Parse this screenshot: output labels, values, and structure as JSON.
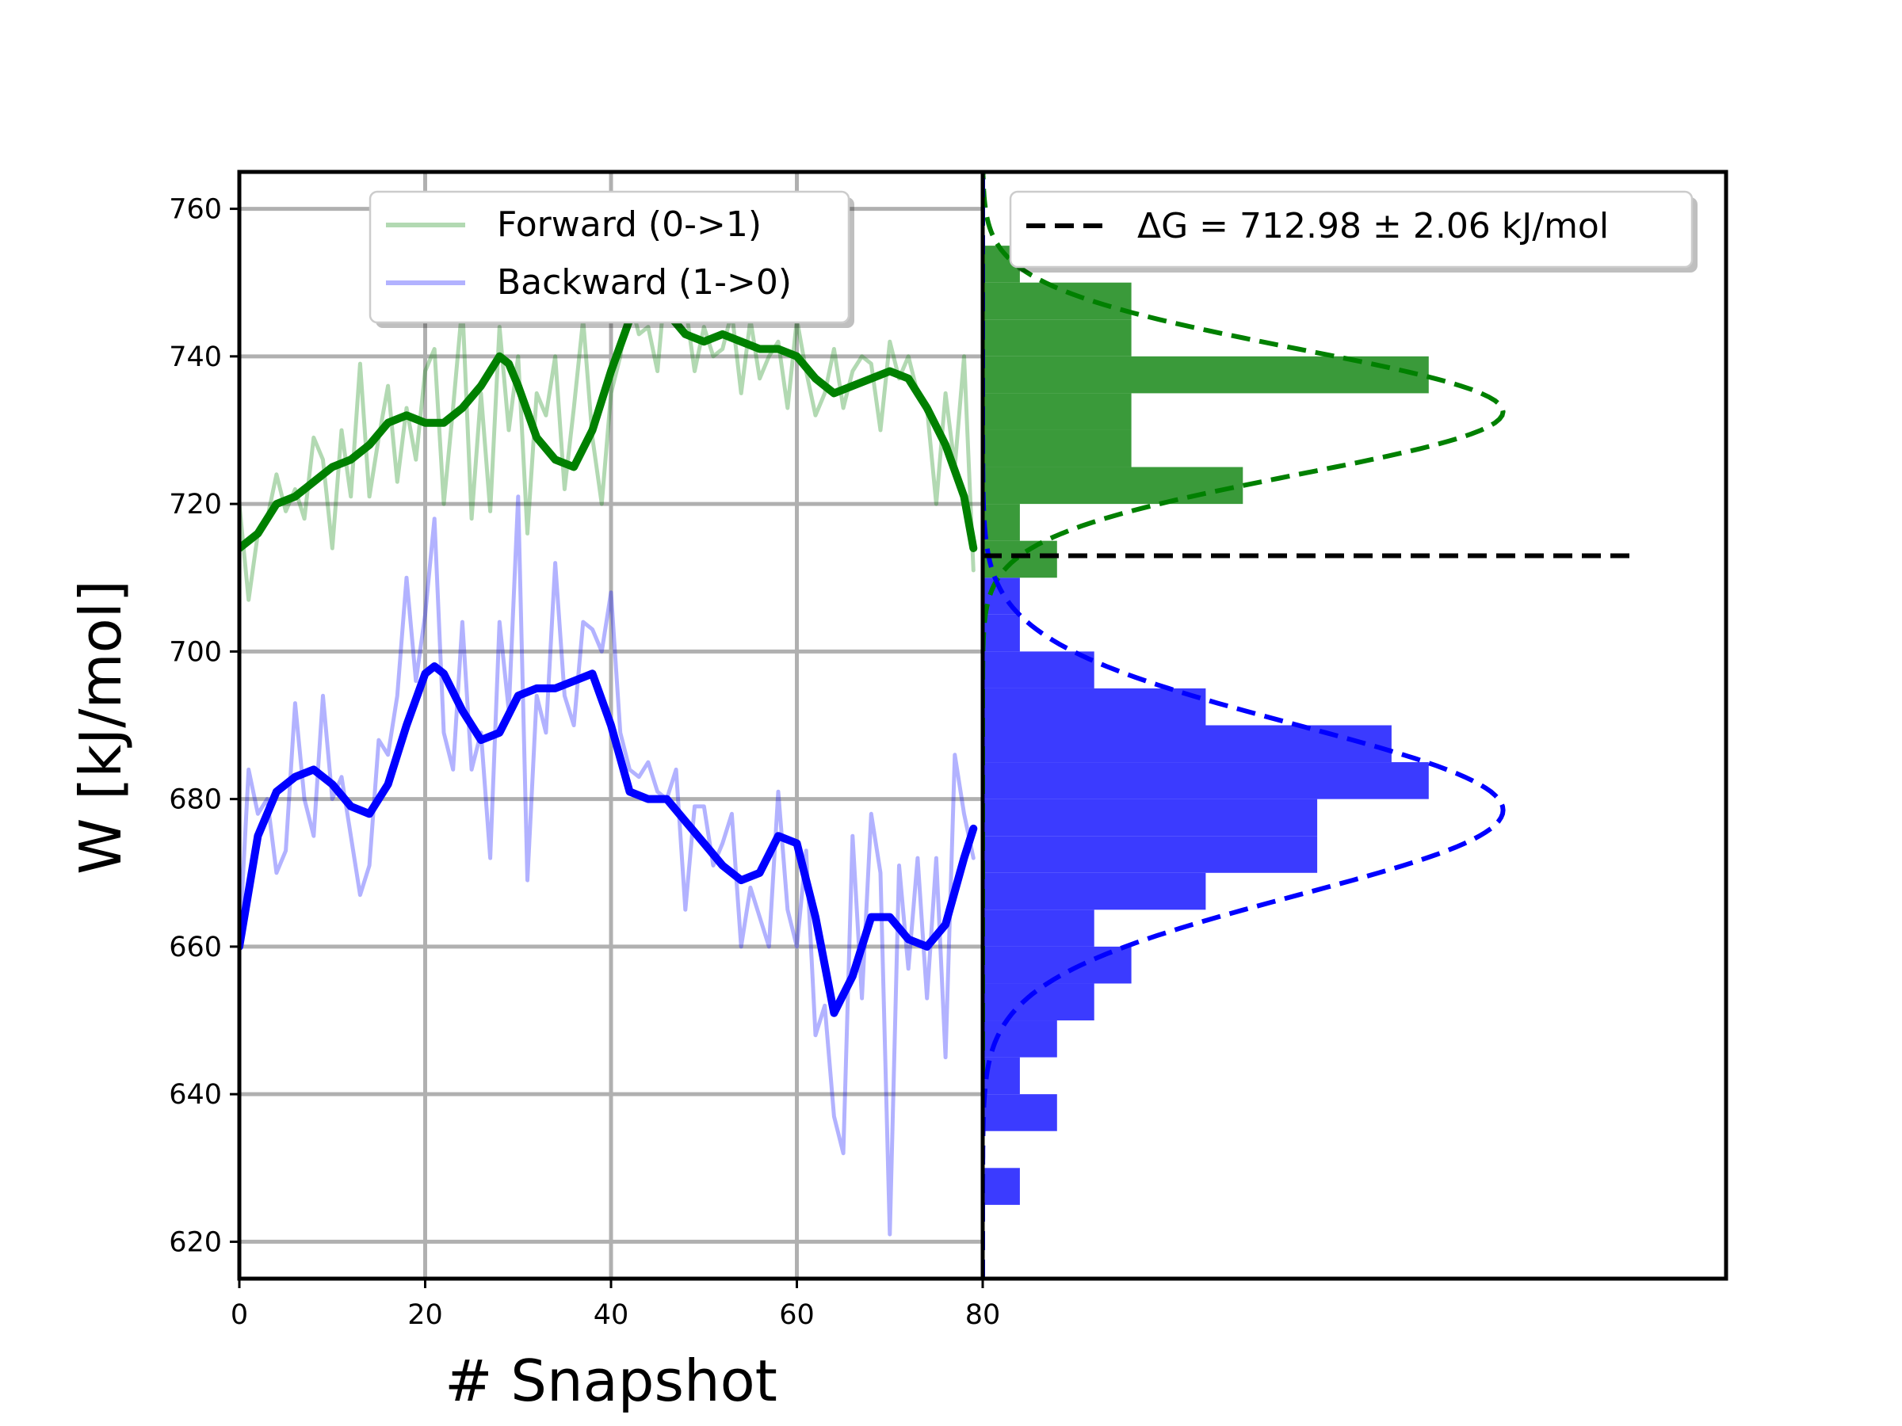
{
  "chart_data": {
    "type": "line",
    "ylabel": "W [kJ/mol]",
    "xlabel": "# Snapshot",
    "xlim": [
      0,
      80
    ],
    "ylim": [
      615,
      765
    ],
    "x_ticks": [
      0,
      20,
      40,
      60,
      80
    ],
    "y_ticks": [
      620,
      640,
      660,
      680,
      700,
      720,
      740,
      760
    ],
    "grid": true,
    "legend_position": "top-center",
    "colors": {
      "forward": "#008000",
      "backward": "#0000ff",
      "forward_hist": "#3a9a3a",
      "backward_hist": "#3b3bff",
      "overlap_hist": "#1a33cc",
      "delta_g_line": "#000000"
    },
    "series": [
      {
        "name": "Forward (0->1)",
        "role": "raw",
        "x": [
          0,
          1,
          2,
          3,
          4,
          5,
          6,
          7,
          8,
          9,
          10,
          11,
          12,
          13,
          14,
          15,
          16,
          17,
          18,
          19,
          20,
          21,
          22,
          23,
          24,
          25,
          26,
          27,
          28,
          29,
          30,
          31,
          32,
          33,
          34,
          35,
          36,
          37,
          38,
          39,
          40,
          41,
          42,
          43,
          44,
          45,
          46,
          47,
          48,
          49,
          50,
          51,
          52,
          53,
          54,
          55,
          56,
          57,
          58,
          59,
          60,
          61,
          62,
          63,
          64,
          65,
          66,
          67,
          68,
          69,
          70,
          71,
          72,
          73,
          74,
          75,
          76,
          77,
          78,
          79
        ],
        "values": [
          720,
          707,
          716,
          718,
          724,
          719,
          722,
          718,
          729,
          726,
          714,
          730,
          721,
          739,
          721,
          729,
          736,
          723,
          733,
          726,
          738,
          741,
          720,
          733,
          747,
          718,
          735,
          719,
          744,
          730,
          740,
          716,
          735,
          732,
          740,
          722,
          733,
          745,
          729,
          720,
          735,
          740,
          748,
          743,
          744,
          738,
          752,
          749,
          747,
          738,
          744,
          740,
          741,
          746,
          735,
          745,
          737,
          740,
          742,
          733,
          745,
          738,
          732,
          735,
          741,
          733,
          738,
          740,
          739,
          730,
          742,
          737,
          740,
          735,
          733,
          720,
          735,
          725,
          740,
          711
        ]
      },
      {
        "name": "Forward (0->1)",
        "role": "smoothed",
        "x": [
          0,
          2,
          4,
          6,
          8,
          10,
          12,
          14,
          16,
          18,
          20,
          22,
          24,
          26,
          28,
          29,
          30,
          32,
          34,
          36,
          38,
          40,
          42,
          44,
          46,
          48,
          50,
          52,
          54,
          56,
          58,
          60,
          62,
          64,
          66,
          68,
          70,
          72,
          74,
          76,
          78,
          79
        ],
        "values": [
          714,
          716,
          720,
          721,
          723,
          725,
          726,
          728,
          731,
          732,
          731,
          731,
          733,
          736,
          740,
          739,
          736,
          729,
          726,
          725,
          730,
          738,
          745,
          748,
          746,
          743,
          742,
          743,
          742,
          741,
          741,
          740,
          737,
          735,
          736,
          737,
          738,
          737,
          733,
          728,
          721,
          714
        ]
      },
      {
        "name": "Backward (1->0)",
        "role": "raw",
        "x": [
          0,
          1,
          2,
          3,
          4,
          5,
          6,
          7,
          8,
          9,
          10,
          11,
          12,
          13,
          14,
          15,
          16,
          17,
          18,
          19,
          20,
          21,
          22,
          23,
          24,
          25,
          26,
          27,
          28,
          29,
          30,
          31,
          32,
          33,
          34,
          35,
          36,
          37,
          38,
          39,
          40,
          41,
          42,
          43,
          44,
          45,
          46,
          47,
          48,
          49,
          50,
          51,
          52,
          53,
          54,
          55,
          56,
          57,
          58,
          59,
          60,
          61,
          62,
          63,
          64,
          65,
          66,
          67,
          68,
          69,
          70,
          71,
          72,
          73,
          74,
          75,
          76,
          77,
          78,
          79
        ],
        "values": [
          660,
          684,
          678,
          680,
          670,
          673,
          693,
          680,
          675,
          694,
          680,
          683,
          675,
          667,
          671,
          688,
          686,
          694,
          710,
          696,
          705,
          718,
          689,
          684,
          704,
          684,
          689,
          672,
          704,
          692,
          721,
          669,
          694,
          689,
          712,
          694,
          690,
          704,
          703,
          700,
          708,
          689,
          684,
          683,
          685,
          681,
          680,
          684,
          665,
          679,
          679,
          671,
          674,
          678,
          660,
          668,
          664,
          660,
          681,
          665,
          660,
          673,
          648,
          652,
          637,
          632,
          675,
          653,
          678,
          670,
          621,
          671,
          657,
          672,
          653,
          672,
          645,
          686,
          678,
          672
        ]
      },
      {
        "name": "Backward (1->0)",
        "role": "smoothed",
        "x": [
          0,
          2,
          4,
          6,
          8,
          10,
          12,
          14,
          16,
          18,
          20,
          21,
          22,
          24,
          26,
          28,
          30,
          32,
          34,
          36,
          38,
          40,
          42,
          44,
          46,
          48,
          50,
          52,
          54,
          56,
          58,
          60,
          62,
          64,
          66,
          68,
          70,
          72,
          74,
          76,
          78,
          79
        ],
        "values": [
          660,
          675,
          681,
          683,
          684,
          682,
          679,
          678,
          682,
          690,
          697,
          698,
          697,
          692,
          688,
          689,
          694,
          695,
          695,
          696,
          697,
          690,
          681,
          680,
          680,
          677,
          674,
          671,
          669,
          670,
          675,
          674,
          664,
          651,
          656,
          664,
          664,
          661,
          660,
          663,
          672,
          676
        ]
      }
    ],
    "histograms": [
      {
        "name": "Forward (0->1)",
        "bin_width": 5,
        "bins": [
          {
            "start": 710,
            "count": 2
          },
          {
            "start": 715,
            "count": 1
          },
          {
            "start": 720,
            "count": 7
          },
          {
            "start": 725,
            "count": 4
          },
          {
            "start": 730,
            "count": 4
          },
          {
            "start": 735,
            "count": 12
          },
          {
            "start": 740,
            "count": 4
          },
          {
            "start": 745,
            "count": 4
          },
          {
            "start": 750,
            "count": 1
          }
        ]
      },
      {
        "name": "Backward (1->0)",
        "bin_width": 5,
        "bins": [
          {
            "start": 625,
            "count": 1
          },
          {
            "start": 630,
            "count": 0
          },
          {
            "start": 635,
            "count": 2
          },
          {
            "start": 640,
            "count": 1
          },
          {
            "start": 645,
            "count": 2
          },
          {
            "start": 650,
            "count": 3
          },
          {
            "start": 655,
            "count": 4
          },
          {
            "start": 660,
            "count": 3
          },
          {
            "start": 665,
            "count": 6
          },
          {
            "start": 670,
            "count": 9
          },
          {
            "start": 675,
            "count": 9
          },
          {
            "start": 680,
            "count": 12
          },
          {
            "start": 685,
            "count": 11
          },
          {
            "start": 690,
            "count": 6
          },
          {
            "start": 695,
            "count": 3
          },
          {
            "start": 700,
            "count": 1
          },
          {
            "start": 705,
            "count": 1
          }
        ]
      }
    ],
    "gaussian_fits": [
      {
        "name": "Forward (0->1)",
        "mean": 732.5,
        "std": 8.5
      },
      {
        "name": "Backward (1->0)",
        "mean": 678.5,
        "std": 11.5
      }
    ],
    "delta_g": {
      "label": "ΔG = 712.98 ± 2.06 kJ/mol",
      "value": 712.98
    },
    "legend_left": [
      "Forward (0->1)",
      "Backward (1->0)"
    ],
    "legend_right": [
      "ΔG = 712.98 ± 2.06 kJ/mol"
    ]
  }
}
